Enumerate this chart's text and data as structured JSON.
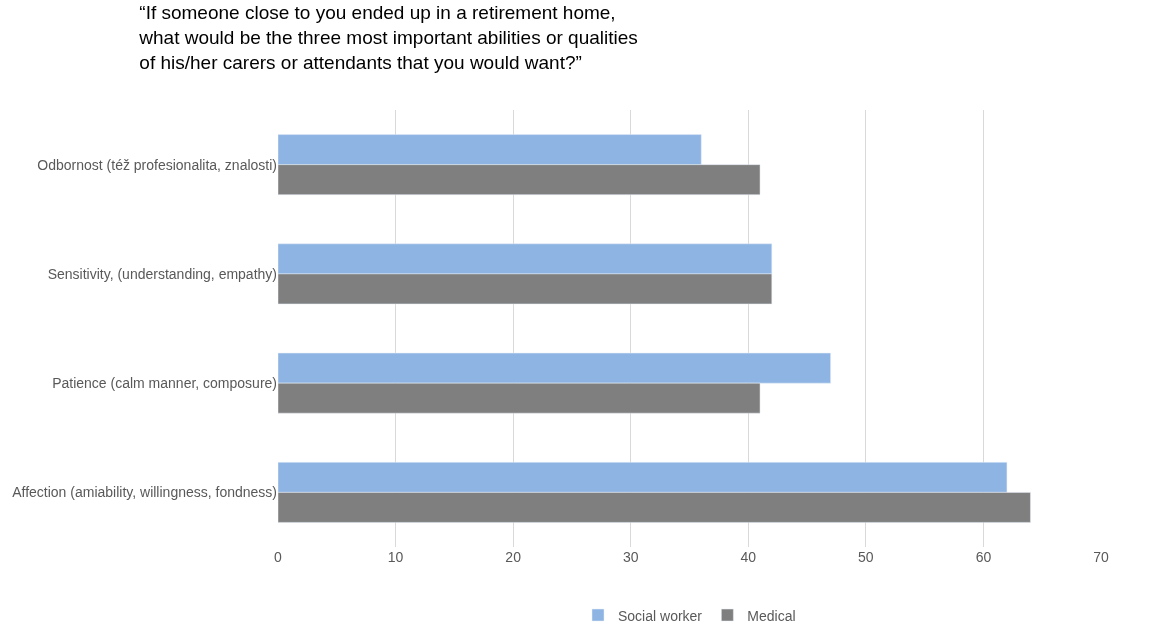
{
  "chart_data": {
    "type": "bar",
    "orientation": "horizontal",
    "title": "“If someone close to you ended up in a retirement home, what would be the three most important abilities or qualities of his/her carers or attendants that you would want?”",
    "categories": [
      "Odbornost (též profesionalita, znalosti)",
      "Sensitivity, (understanding, empathy)",
      "Patience (calm manner, composure)",
      "Affection (amiability, willingness, fondness)"
    ],
    "series": [
      {
        "name": "Social worker",
        "color": "#8eb4e3",
        "values": [
          36,
          42,
          47,
          62
        ]
      },
      {
        "name": "Medical",
        "color": "#7f7f7f",
        "values": [
          41,
          42,
          41,
          64
        ]
      }
    ],
    "xlim": [
      0,
      70
    ],
    "xticks": [
      0,
      10,
      20,
      30,
      40,
      50,
      60,
      70
    ],
    "grid": "x",
    "legend": "bottom"
  }
}
